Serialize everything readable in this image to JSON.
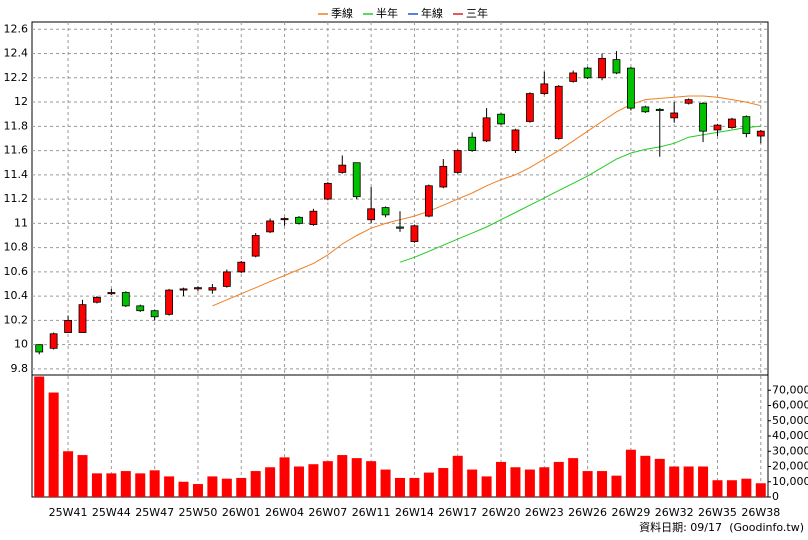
{
  "chart_data": [
    {
      "type": "candlestick",
      "legend": "top",
      "up_color": "#ff0000",
      "down_color": "#00c000",
      "categories": [
        null,
        null,
        "25W41",
        null,
        null,
        "25W44",
        null,
        null,
        "25W47",
        null,
        null,
        "25W50",
        null,
        null,
        "26W01",
        null,
        null,
        "26W04",
        null,
        null,
        "26W07",
        null,
        null,
        "26W11",
        null,
        null,
        "26W14",
        null,
        null,
        "26W17",
        null,
        null,
        "26W20",
        null,
        null,
        "26W23",
        null,
        null,
        "26W26",
        null,
        null,
        "26W29",
        null,
        null,
        "26W32",
        null,
        null,
        "26W35",
        null,
        null,
        "26W38"
      ],
      "open": [
        10.0,
        9.97,
        10.1,
        10.1,
        10.35,
        10.42,
        10.43,
        10.32,
        10.28,
        10.25,
        10.45,
        10.46,
        10.45,
        10.48,
        10.6,
        10.73,
        10.93,
        11.03,
        11.05,
        10.99,
        11.2,
        11.42,
        11.5,
        11.03,
        11.13,
        10.97,
        10.85,
        11.06,
        11.3,
        11.42,
        11.71,
        11.68,
        11.9,
        11.6,
        11.84,
        12.07,
        11.7,
        12.17,
        12.28,
        12.2,
        12.35,
        12.28,
        11.96,
        11.94,
        11.87,
        11.99,
        11.99,
        11.77,
        11.79,
        11.88,
        11.72
      ],
      "high": [
        10.0,
        10.1,
        10.24,
        10.37,
        10.4,
        10.46,
        10.44,
        10.33,
        10.29,
        10.46,
        10.47,
        10.48,
        10.5,
        10.62,
        10.69,
        10.92,
        11.04,
        11.05,
        11.06,
        11.12,
        11.34,
        11.56,
        11.5,
        11.3,
        11.14,
        11.1,
        10.99,
        11.32,
        11.53,
        11.61,
        11.75,
        11.95,
        11.91,
        11.78,
        12.08,
        12.25,
        12.14,
        12.26,
        12.29,
        12.4,
        12.42,
        12.29,
        11.97,
        11.95,
        12.0,
        12.03,
        12.0,
        11.82,
        11.87,
        11.89,
        11.77
      ],
      "low": [
        9.92,
        9.96,
        10.1,
        10.1,
        10.34,
        10.41,
        10.31,
        10.27,
        10.2,
        10.24,
        10.4,
        10.44,
        10.42,
        10.47,
        10.59,
        10.72,
        10.92,
        10.98,
        10.99,
        10.98,
        11.19,
        11.41,
        11.2,
        11.0,
        11.05,
        10.93,
        10.84,
        11.05,
        11.29,
        11.41,
        11.59,
        11.67,
        11.81,
        11.58,
        11.83,
        12.06,
        11.69,
        12.16,
        12.19,
        12.18,
        12.23,
        11.93,
        11.91,
        11.55,
        11.83,
        11.98,
        11.67,
        11.72,
        11.78,
        11.71,
        11.66
      ],
      "close": [
        9.94,
        10.09,
        10.2,
        10.33,
        10.39,
        10.43,
        10.32,
        10.28,
        10.23,
        10.45,
        10.46,
        10.47,
        10.47,
        10.6,
        10.68,
        10.9,
        11.02,
        11.04,
        11.0,
        11.1,
        11.33,
        11.48,
        11.22,
        11.12,
        11.07,
        10.96,
        10.98,
        11.31,
        11.47,
        11.6,
        11.6,
        11.87,
        11.82,
        11.77,
        12.07,
        12.15,
        12.13,
        12.24,
        12.2,
        12.36,
        12.24,
        11.95,
        11.92,
        11.93,
        11.91,
        12.02,
        11.76,
        11.81,
        11.86,
        11.74,
        11.76
      ],
      "series": [
        {
          "name": "季線",
          "color": "#f07f20",
          "values": [
            null,
            null,
            null,
            null,
            null,
            null,
            null,
            null,
            null,
            null,
            null,
            null,
            10.32,
            10.37,
            10.42,
            10.47,
            10.52,
            10.57,
            10.62,
            10.67,
            10.74,
            10.83,
            10.9,
            10.96,
            11.0,
            11.03,
            11.06,
            11.1,
            11.15,
            11.2,
            11.25,
            11.31,
            11.36,
            11.4,
            11.46,
            11.53,
            11.6,
            11.68,
            11.76,
            11.84,
            11.92,
            11.98,
            12.02,
            12.03,
            12.04,
            12.05,
            12.05,
            12.04,
            12.02,
            12.0,
            11.97
          ]
        },
        {
          "name": "半年",
          "color": "#22cc22",
          "values": [
            null,
            null,
            null,
            null,
            null,
            null,
            null,
            null,
            null,
            null,
            null,
            null,
            null,
            null,
            null,
            null,
            null,
            null,
            null,
            null,
            null,
            null,
            null,
            null,
            null,
            10.68,
            10.72,
            10.77,
            10.82,
            10.87,
            10.92,
            10.97,
            11.03,
            11.09,
            11.15,
            11.21,
            11.27,
            11.33,
            11.39,
            11.46,
            11.53,
            11.58,
            11.61,
            11.63,
            11.66,
            11.71,
            11.73,
            11.75,
            11.77,
            11.79,
            11.8
          ]
        },
        {
          "name": "年線",
          "color": "#2255dd",
          "values": [
            null,
            null,
            null,
            null,
            null,
            null,
            null,
            null,
            null,
            null,
            null,
            null,
            null,
            null,
            null,
            null,
            null,
            null,
            null,
            null,
            null,
            null,
            null,
            null,
            null,
            null,
            null,
            null,
            null,
            null,
            null,
            null,
            null,
            null,
            null,
            null,
            null,
            null,
            null,
            null,
            null,
            null,
            null,
            null,
            null,
            null,
            null,
            null,
            null,
            null,
            null
          ]
        },
        {
          "name": "三年",
          "color": "#dd2222",
          "values": [
            null,
            null,
            null,
            null,
            null,
            null,
            null,
            null,
            null,
            null,
            null,
            null,
            null,
            null,
            null,
            null,
            null,
            null,
            null,
            null,
            null,
            null,
            null,
            null,
            null,
            null,
            null,
            null,
            null,
            null,
            null,
            null,
            null,
            null,
            null,
            null,
            null,
            null,
            null,
            null,
            null,
            null,
            null,
            null,
            null,
            null,
            null,
            null,
            null,
            null,
            null
          ]
        }
      ],
      "ylim": [
        9.75,
        12.66
      ],
      "yticks": [
        9.8,
        10,
        10.2,
        10.4,
        10.6,
        10.8,
        11,
        11.2,
        11.4,
        11.6,
        11.8,
        12,
        12.2,
        12.4,
        12.6
      ],
      "grid": true,
      "annotations": [
        "資料日期: 09/17",
        "(Goodinfo.tw)"
      ]
    },
    {
      "type": "bar",
      "color": "#ff0000",
      "values": [
        79000,
        68500,
        30000,
        27500,
        15500,
        15500,
        17000,
        15500,
        17500,
        13500,
        10000,
        8500,
        13500,
        12000,
        12500,
        17000,
        19500,
        26000,
        20000,
        21500,
        23500,
        27500,
        25500,
        23500,
        18000,
        12500,
        12500,
        16000,
        19000,
        27000,
        18000,
        13500,
        23000,
        19500,
        18000,
        19500,
        23000,
        25500,
        17000,
        17000,
        14000,
        31000,
        27000,
        25000,
        20000,
        20000,
        20000,
        11000,
        11000,
        12000,
        9000
      ],
      "ylim": [
        0,
        80000
      ],
      "yticks": [
        0,
        {
          "value": 10000,
          "label": "10,000"
        },
        {
          "value": 20000,
          "label": "20,000"
        },
        {
          "value": 30000,
          "label": "30,000"
        },
        {
          "value": 40000,
          "label": "40,000"
        },
        {
          "value": 50000,
          "label": "50,000"
        },
        {
          "value": 60000,
          "label": "60,000"
        },
        {
          "value": 70000,
          "label": "70,000"
        }
      ]
    }
  ]
}
